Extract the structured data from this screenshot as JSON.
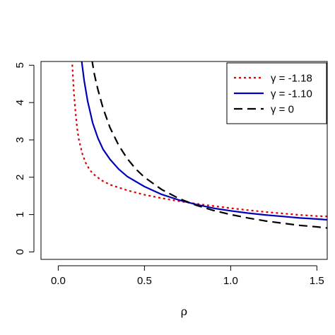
{
  "chart_data": {
    "type": "line",
    "title": "",
    "xlabel": "ρ",
    "ylabel": "",
    "xlim": [
      -0.1,
      1.56
    ],
    "ylim": [
      -0.2,
      5.1
    ],
    "xticks": [
      0.0,
      0.5,
      1.0,
      1.5
    ],
    "xtick_labels": [
      "0.0",
      "0.5",
      "1.0",
      "1.5"
    ],
    "yticks": [
      0,
      1,
      2,
      3,
      4,
      5
    ],
    "ytick_labels": [
      "0",
      "1",
      "2",
      "3",
      "4",
      "5"
    ],
    "grid": false,
    "legend_position": "top-right",
    "series": [
      {
        "name": "γ = -1.18",
        "color": "#dd0000",
        "style": "dotted",
        "x": [
          0.08,
          0.09,
          0.1,
          0.11,
          0.12,
          0.14,
          0.16,
          0.18,
          0.2,
          0.25,
          0.3,
          0.4,
          0.5,
          0.6,
          0.7,
          0.8,
          0.9,
          1.0,
          1.1,
          1.2,
          1.3,
          1.4,
          1.5,
          1.56
        ],
        "y": [
          5.15,
          4.3,
          3.75,
          3.3,
          3.0,
          2.62,
          2.38,
          2.22,
          2.1,
          1.92,
          1.8,
          1.65,
          1.53,
          1.44,
          1.36,
          1.29,
          1.23,
          1.17,
          1.12,
          1.07,
          1.03,
          0.99,
          0.96,
          0.95
        ]
      },
      {
        "name": "γ = -1.10",
        "color": "#0000bb",
        "style": "solid",
        "x": [
          0.135,
          0.15,
          0.17,
          0.2,
          0.23,
          0.26,
          0.3,
          0.35,
          0.4,
          0.5,
          0.6,
          0.7,
          0.8,
          0.9,
          1.0,
          1.1,
          1.2,
          1.3,
          1.4,
          1.5,
          1.56
        ],
        "y": [
          5.15,
          4.6,
          4.05,
          3.45,
          3.05,
          2.75,
          2.48,
          2.22,
          2.02,
          1.75,
          1.54,
          1.39,
          1.27,
          1.17,
          1.1,
          1.04,
          0.99,
          0.95,
          0.91,
          0.88,
          0.86
        ]
      },
      {
        "name": "γ = 0",
        "color": "#000000",
        "style": "dashed",
        "x": [
          0.195,
          0.21,
          0.23,
          0.26,
          0.3,
          0.35,
          0.4,
          0.45,
          0.5,
          0.6,
          0.7,
          0.8,
          0.9,
          1.0,
          1.1,
          1.2,
          1.3,
          1.4,
          1.5,
          1.56
        ],
        "y": [
          5.15,
          4.75,
          4.35,
          3.85,
          3.33,
          2.86,
          2.5,
          2.22,
          2.0,
          1.67,
          1.43,
          1.25,
          1.11,
          1.0,
          0.91,
          0.83,
          0.77,
          0.71,
          0.67,
          0.64
        ]
      }
    ]
  }
}
